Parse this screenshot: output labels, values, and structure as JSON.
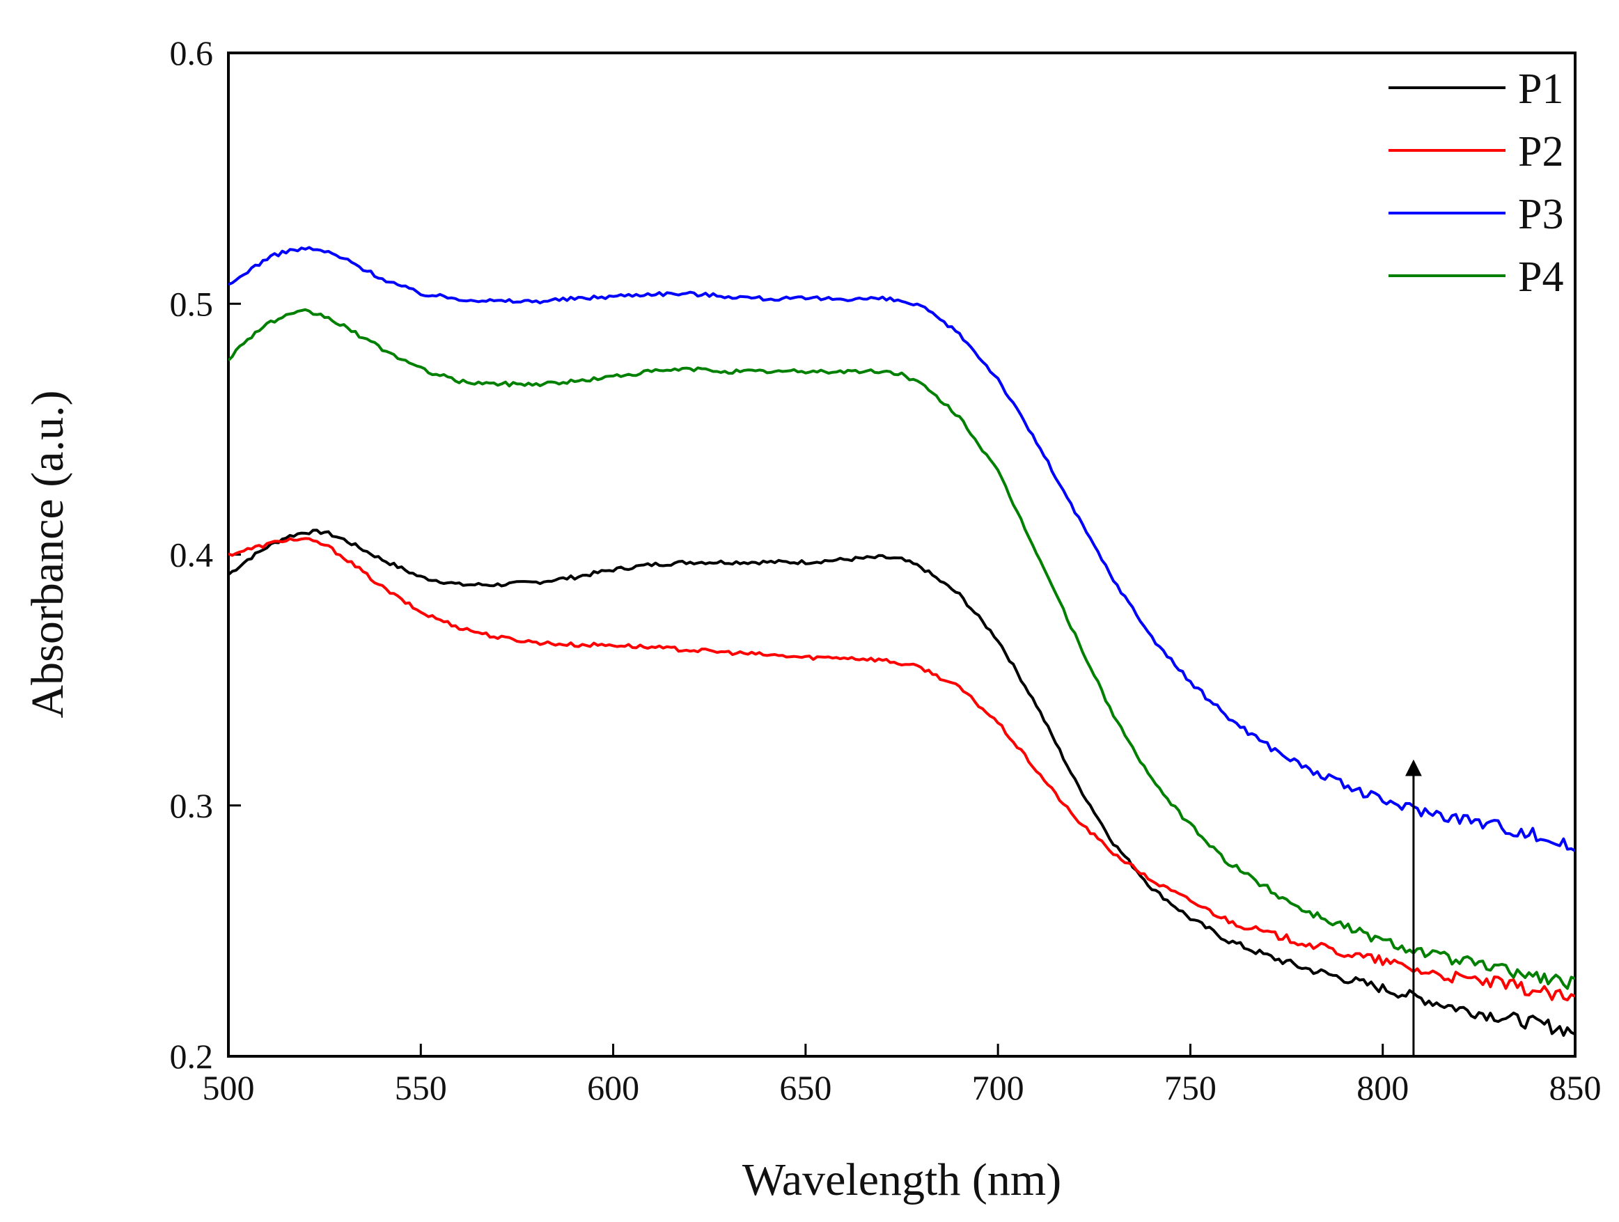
{
  "chart_data": {
    "type": "line",
    "title": "",
    "xlabel": "Wavelength (nm)",
    "ylabel": "Absorbance (a.u.)",
    "xlim": [
      500,
      850
    ],
    "ylim": [
      0.2,
      0.6
    ],
    "xticks": [
      500,
      550,
      600,
      650,
      700,
      750,
      800,
      850
    ],
    "xtick_labels": [
      "500",
      "550",
      "600",
      "650",
      "700",
      "750",
      "800",
      "850"
    ],
    "yticks": [
      0.2,
      0.3,
      0.4,
      0.5,
      0.6
    ],
    "ytick_labels": [
      "0.2",
      "0.3",
      "0.4",
      "0.5",
      "0.6"
    ],
    "grid": false,
    "legend_position": "top-right",
    "series": [
      {
        "name": "P1",
        "color": "#000000",
        "x": [
          500,
          505,
          510,
          515,
          520,
          525,
          530,
          540,
          550,
          560,
          570,
          580,
          590,
          600,
          610,
          620,
          630,
          640,
          650,
          660,
          670,
          675,
          680,
          690,
          700,
          710,
          720,
          730,
          740,
          750,
          760,
          770,
          780,
          790,
          800,
          810,
          820,
          830,
          840,
          850
        ],
        "y": [
          0.392,
          0.398,
          0.403,
          0.407,
          0.409,
          0.409,
          0.406,
          0.398,
          0.391,
          0.388,
          0.388,
          0.389,
          0.391,
          0.394,
          0.396,
          0.397,
          0.397,
          0.397,
          0.397,
          0.398,
          0.399,
          0.398,
          0.395,
          0.384,
          0.366,
          0.34,
          0.31,
          0.285,
          0.267,
          0.255,
          0.246,
          0.24,
          0.235,
          0.231,
          0.227,
          0.223,
          0.219,
          0.216,
          0.213,
          0.21
        ]
      },
      {
        "name": "P2",
        "color": "#ff0000",
        "x": [
          500,
          505,
          510,
          515,
          520,
          525,
          530,
          540,
          550,
          560,
          570,
          580,
          590,
          600,
          610,
          620,
          630,
          640,
          650,
          660,
          670,
          680,
          690,
          700,
          710,
          720,
          730,
          740,
          750,
          760,
          770,
          780,
          790,
          800,
          810,
          820,
          830,
          840,
          850
        ],
        "y": [
          0.4,
          0.402,
          0.404,
          0.406,
          0.406,
          0.404,
          0.399,
          0.387,
          0.377,
          0.371,
          0.367,
          0.365,
          0.364,
          0.364,
          0.363,
          0.362,
          0.361,
          0.36,
          0.359,
          0.359,
          0.358,
          0.355,
          0.347,
          0.333,
          0.314,
          0.295,
          0.281,
          0.27,
          0.262,
          0.254,
          0.249,
          0.245,
          0.241,
          0.238,
          0.234,
          0.231,
          0.229,
          0.226,
          0.222
        ]
      },
      {
        "name": "P3",
        "color": "#0000ff",
        "x": [
          500,
          505,
          510,
          515,
          520,
          525,
          530,
          540,
          550,
          560,
          570,
          580,
          590,
          600,
          610,
          620,
          630,
          640,
          650,
          660,
          670,
          675,
          680,
          690,
          700,
          710,
          720,
          730,
          740,
          750,
          760,
          770,
          780,
          790,
          800,
          810,
          820,
          830,
          840,
          850
        ],
        "y": [
          0.507,
          0.513,
          0.518,
          0.521,
          0.522,
          0.521,
          0.518,
          0.51,
          0.504,
          0.502,
          0.501,
          0.501,
          0.502,
          0.503,
          0.504,
          0.504,
          0.503,
          0.502,
          0.502,
          0.502,
          0.502,
          0.501,
          0.499,
          0.488,
          0.47,
          0.445,
          0.417,
          0.39,
          0.367,
          0.349,
          0.335,
          0.324,
          0.315,
          0.308,
          0.302,
          0.298,
          0.295,
          0.292,
          0.288,
          0.283
        ]
      },
      {
        "name": "P4",
        "color": "#008000",
        "x": [
          500,
          505,
          510,
          515,
          520,
          525,
          530,
          540,
          550,
          560,
          570,
          580,
          590,
          600,
          610,
          620,
          630,
          640,
          650,
          660,
          670,
          675,
          680,
          690,
          700,
          710,
          720,
          730,
          740,
          750,
          760,
          770,
          780,
          790,
          800,
          810,
          820,
          830,
          840,
          850
        ],
        "y": [
          0.478,
          0.486,
          0.492,
          0.495,
          0.497,
          0.495,
          0.491,
          0.482,
          0.474,
          0.469,
          0.468,
          0.468,
          0.469,
          0.471,
          0.473,
          0.474,
          0.473,
          0.473,
          0.473,
          0.473,
          0.473,
          0.472,
          0.468,
          0.455,
          0.433,
          0.401,
          0.368,
          0.336,
          0.31,
          0.292,
          0.277,
          0.267,
          0.258,
          0.252,
          0.246,
          0.242,
          0.238,
          0.235,
          0.232,
          0.229
        ]
      }
    ],
    "annotations": [
      {
        "type": "arrow",
        "x": 808,
        "y_start": 0.2,
        "y_end": 0.317,
        "color": "#000000"
      }
    ]
  }
}
